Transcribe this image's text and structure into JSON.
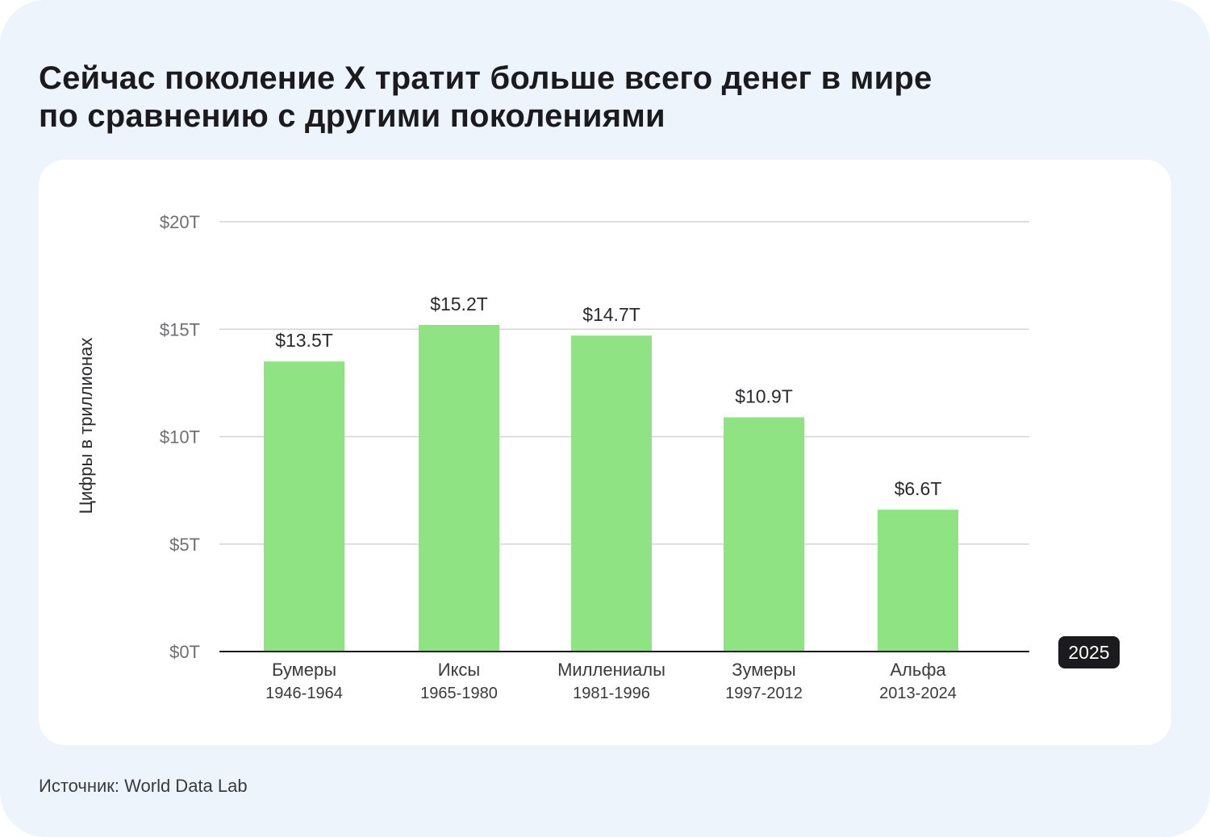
{
  "title_lines": [
    "Сейчас поколение X тратит больше всего денег в мире",
    "по сравнению с другими поколениями"
  ],
  "source": "Источник: World Data Lab",
  "colors": {
    "background": "#eef4fb",
    "card": "#ffffff",
    "bar": "#8fe382",
    "text": "#1b1b1f"
  },
  "chart_data": {
    "type": "bar",
    "categories": [
      "Бумеры",
      "Иксы",
      "Миллениалы",
      "Зумеры",
      "Альфа"
    ],
    "category_years": [
      "1946-1964",
      "1965-1980",
      "1981-1996",
      "1997-2012",
      "2013-2024"
    ],
    "values": [
      13.5,
      15.2,
      14.7,
      10.9,
      6.6
    ],
    "value_labels": [
      "$13.5T",
      "$15.2T",
      "$14.7T",
      "$10.9T",
      "$6.6T"
    ],
    "ylabel": "Цифры в триллионах",
    "ylim": [
      0,
      20
    ],
    "yticks": [
      0,
      5,
      10,
      15,
      20
    ],
    "ytick_labels": [
      "$0T",
      "$5T",
      "$10T",
      "$15T",
      "$20T"
    ],
    "badge": "2025",
    "grid": true
  }
}
